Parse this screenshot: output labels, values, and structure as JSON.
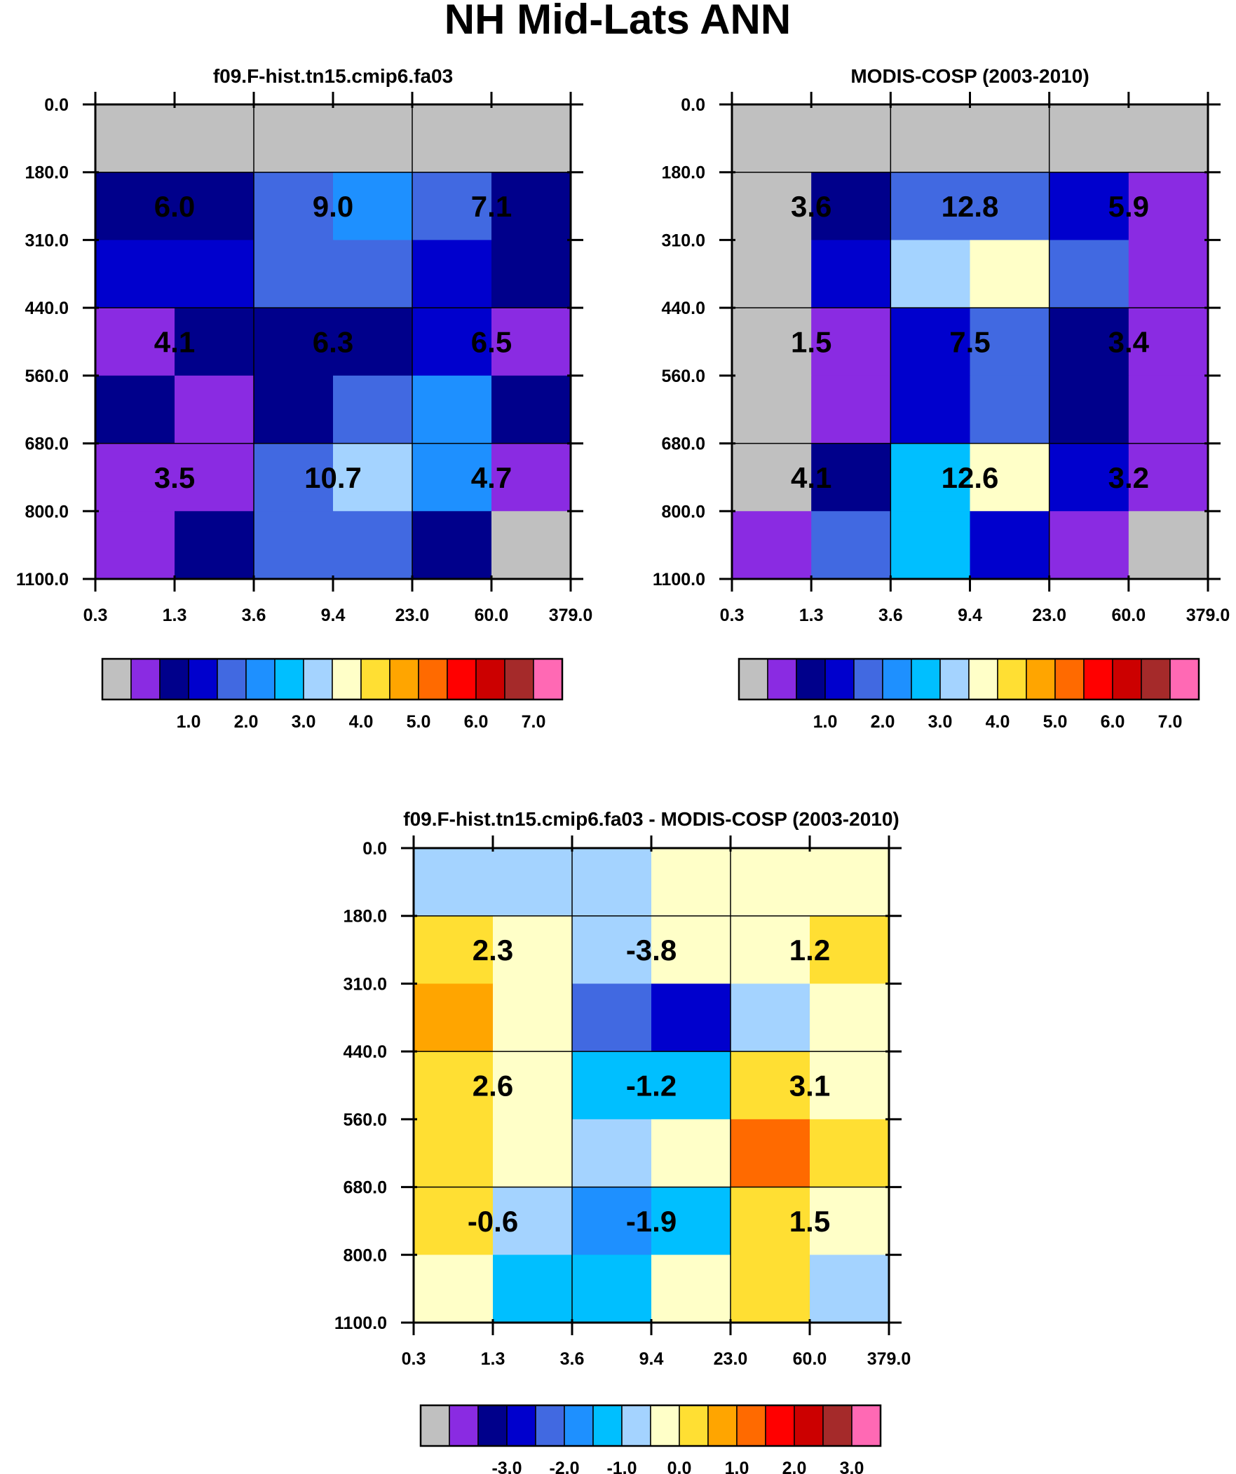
{
  "title": "NH Mid-Lats ANN",
  "chart_data": [
    {
      "type": "heatmap",
      "title": "f09.F-hist.tn15.cmip6.fa03",
      "xticks": [
        "0.3",
        "1.3",
        "3.6",
        "9.4",
        "23.0",
        "60.0",
        "379.0"
      ],
      "yticks": [
        "0.0",
        "180.0",
        "310.0",
        "440.0",
        "560.0",
        "680.0",
        "800.0",
        "1100.0"
      ],
      "grid": [
        [
          0,
          0,
          0,
          0,
          0,
          0
        ],
        [
          2,
          2,
          4,
          5,
          4,
          2
        ],
        [
          3,
          3,
          4,
          4,
          3,
          2
        ],
        [
          1,
          2,
          2,
          2,
          3,
          1
        ],
        [
          2,
          1,
          2,
          4,
          5,
          2
        ],
        [
          1,
          1,
          4,
          7,
          5,
          1
        ],
        [
          1,
          2,
          4,
          4,
          2,
          0
        ]
      ],
      "box_values": [
        [
          "6.0",
          "9.0",
          "7.1"
        ],
        [
          "4.1",
          "6.3",
          "6.5"
        ],
        [
          "3.5",
          "10.7",
          "4.7"
        ]
      ],
      "colorbar": {
        "colors": [
          "#c0c0c0",
          "#8a2be2",
          "#00008b",
          "#0000cd",
          "#4169e1",
          "#1e90ff",
          "#00bfff",
          "#a4d3ff",
          "#ffffc8",
          "#ffdf33",
          "#ffa500",
          "#ff6a00",
          "#ff0000",
          "#cc0000",
          "#a52a2a",
          "#ff69b4"
        ],
        "labels": [
          "1.0",
          "2.0",
          "3.0",
          "4.0",
          "5.0",
          "6.0",
          "7.0"
        ]
      }
    },
    {
      "type": "heatmap",
      "title": "MODIS-COSP (2003-2010)",
      "xticks": [
        "0.3",
        "1.3",
        "3.6",
        "9.4",
        "23.0",
        "60.0",
        "379.0"
      ],
      "yticks": [
        "0.0",
        "180.0",
        "310.0",
        "440.0",
        "560.0",
        "680.0",
        "800.0",
        "1100.0"
      ],
      "grid": [
        [
          0,
          0,
          0,
          0,
          0,
          0
        ],
        [
          0,
          2,
          4,
          4,
          3,
          1
        ],
        [
          0,
          3,
          7,
          8,
          4,
          1
        ],
        [
          0,
          1,
          3,
          4,
          2,
          1
        ],
        [
          0,
          1,
          3,
          4,
          2,
          1
        ],
        [
          0,
          2,
          6,
          8,
          3,
          1
        ],
        [
          1,
          4,
          6,
          3,
          1,
          0
        ]
      ],
      "box_values": [
        [
          "3.6",
          "12.8",
          "5.9"
        ],
        [
          "1.5",
          "7.5",
          "3.4"
        ],
        [
          "4.1",
          "12.6",
          "3.2"
        ]
      ],
      "colorbar": {
        "colors": [
          "#c0c0c0",
          "#8a2be2",
          "#00008b",
          "#0000cd",
          "#4169e1",
          "#1e90ff",
          "#00bfff",
          "#a4d3ff",
          "#ffffc8",
          "#ffdf33",
          "#ffa500",
          "#ff6a00",
          "#ff0000",
          "#cc0000",
          "#a52a2a",
          "#ff69b4"
        ],
        "labels": [
          "1.0",
          "2.0",
          "3.0",
          "4.0",
          "5.0",
          "6.0",
          "7.0"
        ]
      }
    },
    {
      "type": "heatmap",
      "title": "f09.F-hist.tn15.cmip6.fa03 - MODIS-COSP (2003-2010)",
      "xticks": [
        "0.3",
        "1.3",
        "3.6",
        "9.4",
        "23.0",
        "60.0",
        "379.0"
      ],
      "yticks": [
        "0.0",
        "180.0",
        "310.0",
        "440.0",
        "560.0",
        "680.0",
        "800.0",
        "1100.0"
      ],
      "grid": [
        [
          7,
          7,
          7,
          8,
          8,
          8
        ],
        [
          9,
          8,
          7,
          8,
          8,
          9
        ],
        [
          10,
          8,
          4,
          3,
          7,
          8
        ],
        [
          9,
          8,
          6,
          6,
          9,
          8
        ],
        [
          9,
          8,
          7,
          8,
          11,
          9
        ],
        [
          9,
          7,
          5,
          6,
          9,
          8
        ],
        [
          8,
          6,
          6,
          8,
          9,
          7
        ]
      ],
      "box_values": [
        [
          "2.3",
          "-3.8",
          "1.2"
        ],
        [
          "2.6",
          "-1.2",
          "3.1"
        ],
        [
          "-0.6",
          "-1.9",
          "1.5"
        ]
      ],
      "colorbar": {
        "colors": [
          "#c0c0c0",
          "#8a2be2",
          "#00008b",
          "#0000cd",
          "#4169e1",
          "#1e90ff",
          "#00bfff",
          "#a4d3ff",
          "#ffffc8",
          "#ffdf33",
          "#ffa500",
          "#ff6a00",
          "#ff0000",
          "#cc0000",
          "#a52a2a",
          "#ff69b4"
        ],
        "labels": [
          "-3.0",
          "-2.0",
          "-1.0",
          "0.0",
          "1.0",
          "2.0",
          "3.0"
        ]
      }
    }
  ]
}
